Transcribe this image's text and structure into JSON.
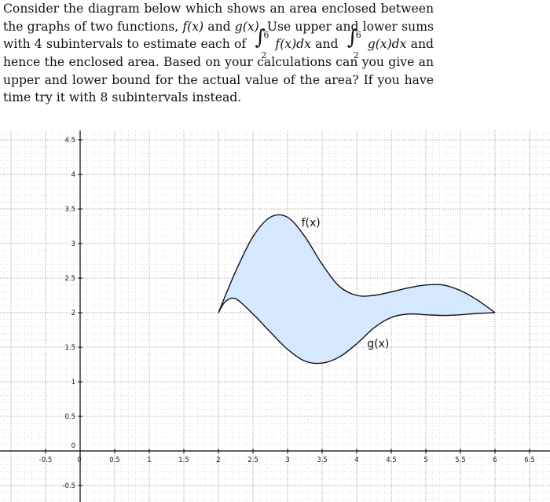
{
  "problem": {
    "text1": "Consider the diagram below which shows an area enclosed between the graphs of two functions, ",
    "f_of_x": "f(x)",
    "and_word": " and ",
    "g_of_x": "g(x)",
    "text2": ". Use upper and lower sums with 4 subintervals to estimate each of ",
    "integral_upper": "6",
    "integral_lower": "2",
    "f_integrand": "f(x)dx",
    "g_integrand": "g(x)dx",
    "text3": " and hence the enclosed area. Based on your calculations can you give an upper and lower bound for the actual value of the area? If you have time try it with 8 subintervals instead."
  },
  "chart_data": {
    "type": "area",
    "xlim": [
      -0.5,
      6.5
    ],
    "ylim": [
      -0.5,
      4.5
    ],
    "grid": true,
    "fill_color": "#d5e8ff",
    "x_ticks": [
      "-0.5",
      "0",
      "0.5",
      "1",
      "1.5",
      "2",
      "2.5",
      "3",
      "3.5",
      "4",
      "4.5",
      "5",
      "5.5",
      "6",
      "6.5"
    ],
    "y_ticks": [
      "4.5",
      "4",
      "3.5",
      "3",
      "2.5",
      "2",
      "1.5",
      "1",
      "0.5",
      "0",
      "-0.5"
    ],
    "series": [
      {
        "name": "f(x)",
        "x": [
          2,
          2.25,
          2.5,
          2.75,
          3,
          3.25,
          3.5,
          3.75,
          4,
          4.25,
          4.5,
          4.75,
          5,
          5.25,
          5.5,
          5.75,
          6
        ],
        "y": [
          2.0,
          2.6,
          3.1,
          3.38,
          3.38,
          3.1,
          2.7,
          2.38,
          2.25,
          2.25,
          2.3,
          2.36,
          2.4,
          2.4,
          2.32,
          2.18,
          2.0
        ]
      },
      {
        "name": "g(x)",
        "x": [
          2,
          2.1,
          2.25,
          2.5,
          2.75,
          3,
          3.25,
          3.5,
          3.75,
          4,
          4.25,
          4.5,
          4.75,
          5,
          5.25,
          5.5,
          5.75,
          6
        ],
        "y": [
          2.0,
          2.16,
          2.2,
          1.98,
          1.72,
          1.47,
          1.3,
          1.27,
          1.36,
          1.55,
          1.78,
          1.93,
          1.98,
          1.97,
          1.96,
          1.97,
          1.99,
          2.0
        ]
      }
    ],
    "annotations": [
      {
        "text": "f(x)",
        "x": 3.2,
        "y": 3.25
      },
      {
        "text": "g(x)",
        "x": 4.15,
        "y": 1.5
      }
    ]
  }
}
